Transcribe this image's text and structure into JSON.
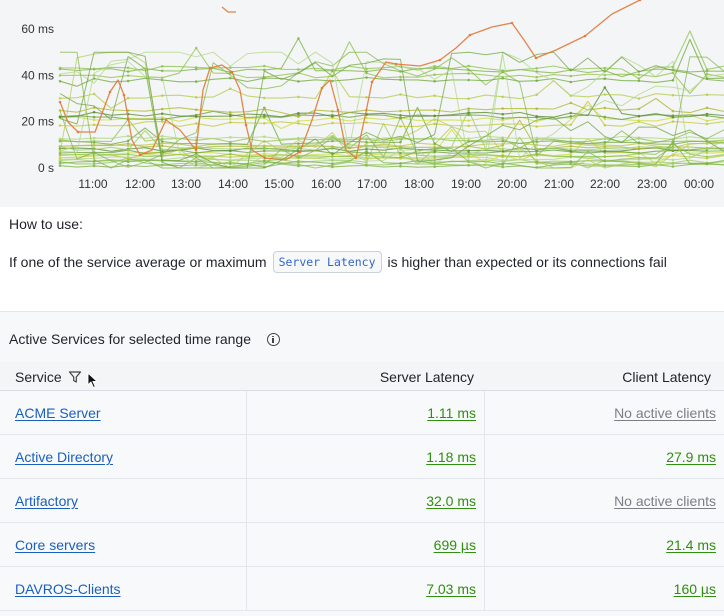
{
  "chart": {
    "y_ticks": [
      "60 ms",
      "40 ms",
      "20 ms",
      "0 s"
    ],
    "x_ticks": [
      "11:00",
      "12:00",
      "13:00",
      "14:00",
      "15:00",
      "16:00",
      "17:00",
      "18:00",
      "19:00",
      "20:00",
      "21:00",
      "22:00",
      "23:00",
      "00:00"
    ]
  },
  "howto": {
    "title": "How to use:",
    "text_before": "If one of the service average or maximum",
    "chip": "Server Latency",
    "text_after": "is higher than expected or its connections fail"
  },
  "section": {
    "title": "Active Services for selected time range"
  },
  "table": {
    "headers": {
      "service": "Service",
      "server": "Server Latency",
      "client": "Client Latency"
    },
    "rows": [
      {
        "service": "ACME Server",
        "server": "1.11 ms",
        "client": "No active clients"
      },
      {
        "service": "Active Directory",
        "server": "1.18 ms",
        "client": "27.9 ms"
      },
      {
        "service": "Artifactory",
        "server": "32.0 ms",
        "client": "No active clients"
      },
      {
        "service": "Core servers",
        "server": "699 µs",
        "client": "21.4 ms"
      },
      {
        "service": "DAVROS-Clients",
        "server": "7.03 ms",
        "client": "160 µs"
      }
    ]
  },
  "colors": {
    "link": "#1b5fbd",
    "value_green": "#2f8f0e",
    "muted": "#7a7f86",
    "orange_series": "#e07a3a"
  }
}
